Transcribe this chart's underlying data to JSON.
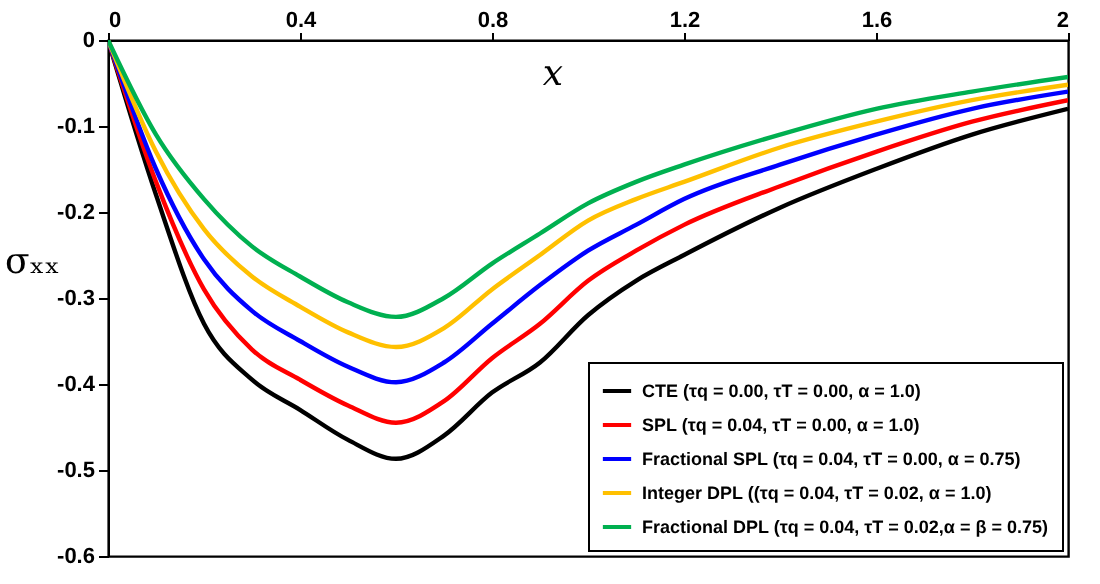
{
  "chart_data": {
    "type": "line",
    "xlabel": "x",
    "ylabel": "σₓₓ",
    "x": [
      0,
      0.1,
      0.2,
      0.3,
      0.4,
      0.5,
      0.6,
      0.7,
      0.8,
      0.9,
      1.0,
      1.1,
      1.2,
      1.4,
      1.6,
      1.8,
      2.0
    ],
    "series": [
      {
        "name": "CTE  (τq = 0.00, τT = 0.00, α = 1.0)",
        "color": "#000000",
        "values": [
          0,
          -0.18,
          -0.33,
          -0.395,
          -0.43,
          -0.465,
          -0.487,
          -0.46,
          -0.41,
          -0.375,
          -0.32,
          -0.28,
          -0.25,
          -0.195,
          -0.15,
          -0.11,
          -0.08
        ]
      },
      {
        "name": "SPL (τq = 0.04, τT = 0.00, α = 1.0)",
        "color": "#ff0000",
        "values": [
          0,
          -0.165,
          -0.29,
          -0.36,
          -0.395,
          -0.425,
          -0.445,
          -0.42,
          -0.37,
          -0.33,
          -0.28,
          -0.245,
          -0.215,
          -0.17,
          -0.13,
          -0.095,
          -0.07
        ]
      },
      {
        "name": "Fractional SPL (τq = 0.04, τT = 0.00, α = 0.75)",
        "color": "#0000ff",
        "values": [
          0,
          -0.15,
          -0.255,
          -0.315,
          -0.35,
          -0.38,
          -0.398,
          -0.375,
          -0.33,
          -0.285,
          -0.245,
          -0.215,
          -0.185,
          -0.145,
          -0.11,
          -0.08,
          -0.06
        ]
      },
      {
        "name": "Integer DPL ((τq = 0.04, τT = 0.02, α = 1.0)",
        "color": "#ffc000",
        "values": [
          0,
          -0.13,
          -0.22,
          -0.275,
          -0.31,
          -0.34,
          -0.357,
          -0.335,
          -0.29,
          -0.25,
          -0.21,
          -0.185,
          -0.165,
          -0.125,
          -0.095,
          -0.07,
          -0.052
        ]
      },
      {
        "name": "Fractional DPL (τq = 0.04, τT = 0.02,α = β = 0.75)",
        "color": "#00b050",
        "values": [
          0,
          -0.11,
          -0.185,
          -0.24,
          -0.275,
          -0.305,
          -0.322,
          -0.3,
          -0.26,
          -0.225,
          -0.19,
          -0.165,
          -0.145,
          -0.11,
          -0.08,
          -0.06,
          -0.043
        ]
      }
    ],
    "xlim": [
      0,
      2
    ],
    "xticks": [
      0,
      0.4,
      0.8,
      1.2,
      1.6,
      2
    ],
    "ylim": [
      -0.6,
      0
    ],
    "yticks": [
      0,
      -0.1,
      -0.2,
      -0.3,
      -0.4,
      -0.5,
      -0.6
    ],
    "grid": false,
    "legend": "bottom right",
    "line_style": "solid"
  }
}
